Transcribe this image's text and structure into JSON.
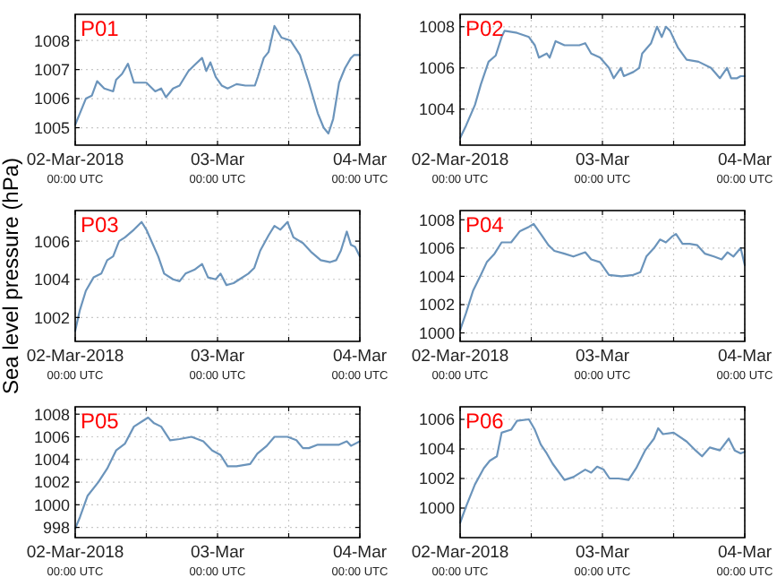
{
  "chart_data": [
    {
      "type": "line",
      "title": "P01",
      "x": [
        "2018-03-02T00:00",
        "2018-03-02T00:48",
        "2018-03-02T01:48",
        "2018-03-02T02:48",
        "2018-03-02T03:42",
        "2018-03-02T04:54",
        "2018-03-02T06:24",
        "2018-03-02T06:54",
        "2018-03-02T07:54",
        "2018-03-02T08:54",
        "2018-03-02T09:54",
        "2018-03-02T12:00",
        "2018-03-02T13:30",
        "2018-03-02T14:30",
        "2018-03-02T15:18",
        "2018-03-02T16:30",
        "2018-03-02T17:36",
        "2018-03-02T19:06",
        "2018-03-02T20:06",
        "2018-03-02T21:24",
        "2018-03-02T22:06",
        "2018-03-02T22:48",
        "2018-03-02T23:42",
        "2018-03-03T00:42",
        "2018-03-03T01:42",
        "2018-03-03T03:12",
        "2018-03-03T04:42",
        "2018-03-03T06:18",
        "2018-03-03T06:48",
        "2018-03-03T07:48",
        "2018-03-03T08:36",
        "2018-03-03T09:36",
        "2018-03-03T10:48",
        "2018-03-03T12:18",
        "2018-03-03T13:54",
        "2018-03-03T15:24",
        "2018-03-03T16:54",
        "2018-03-03T17:54",
        "2018-03-03T18:42",
        "2018-03-03T19:30",
        "2018-03-03T20:30",
        "2018-03-03T21:30",
        "2018-03-03T22:30",
        "2018-03-03T23:00",
        "2018-03-04T00:00"
      ],
      "series": [
        {
          "color": "#6b94bb",
          "values": [
            1005.1,
            1005.5,
            1006.0,
            1006.1,
            1006.6,
            1006.35,
            1006.25,
            1006.65,
            1006.85,
            1007.2,
            1006.55,
            1006.55,
            1006.25,
            1006.35,
            1006.05,
            1006.35,
            1006.45,
            1006.95,
            1007.15,
            1007.4,
            1006.95,
            1007.25,
            1006.75,
            1006.45,
            1006.35,
            1006.5,
            1006.45,
            1006.45,
            1006.75,
            1007.4,
            1007.6,
            1008.5,
            1008.1,
            1008.0,
            1007.5,
            1006.55,
            1005.5,
            1005.0,
            1004.8,
            1005.3,
            1006.55,
            1007.05,
            1007.4,
            1007.5,
            1007.5
          ]
        }
      ],
      "xlim": [
        "2018-03-02T00:00",
        "2018-03-04T00:00"
      ],
      "xticks": [
        {
          "value": "2018-03-02T00:00",
          "label": "02-Mar-2018\n00:00 UTC"
        },
        {
          "value": "2018-03-02T12:00",
          "label": null
        },
        {
          "value": "2018-03-03T00:00",
          "label": "03-Mar\n00:00 UTC"
        },
        {
          "value": "2018-03-03T12:00",
          "label": null
        },
        {
          "value": "2018-03-04T00:00",
          "label": "04-Mar\n00:00 UTC"
        }
      ],
      "ylim": [
        1004.4,
        1008.9
      ],
      "yticks": [
        1005,
        1006,
        1007,
        1008
      ],
      "grid": true,
      "line_style": "solid"
    },
    {
      "type": "line",
      "title": "P02",
      "x": [
        "2018-03-02T00:00",
        "2018-03-02T01:00",
        "2018-03-02T02:30",
        "2018-03-02T03:30",
        "2018-03-02T04:48",
        "2018-03-02T06:00",
        "2018-03-02T07:00",
        "2018-03-02T07:30",
        "2018-03-02T09:36",
        "2018-03-02T11:36",
        "2018-03-02T12:36",
        "2018-03-02T13:18",
        "2018-03-02T14:36",
        "2018-03-02T15:06",
        "2018-03-02T16:06",
        "2018-03-02T17:36",
        "2018-03-02T20:06",
        "2018-03-02T21:06",
        "2018-03-02T22:06",
        "2018-03-02T23:36",
        "2018-03-03T01:06",
        "2018-03-03T01:54",
        "2018-03-03T03:06",
        "2018-03-03T03:36",
        "2018-03-03T05:12",
        "2018-03-03T06:12",
        "2018-03-03T06:42",
        "2018-03-03T08:12",
        "2018-03-03T09:12",
        "2018-03-03T10:00",
        "2018-03-03T10:42",
        "2018-03-03T11:24",
        "2018-03-03T12:42",
        "2018-03-03T14:12",
        "2018-03-03T16:12",
        "2018-03-03T18:18",
        "2018-03-03T19:48",
        "2018-03-03T21:00",
        "2018-03-03T21:42",
        "2018-03-03T22:42",
        "2018-03-03T23:18",
        "2018-03-04T00:00"
      ],
      "series": [
        {
          "color": "#6b94bb",
          "values": [
            1002.6,
            1003.2,
            1004.2,
            1005.2,
            1006.3,
            1006.6,
            1007.5,
            1007.8,
            1007.7,
            1007.5,
            1007.1,
            1006.5,
            1006.7,
            1006.5,
            1007.3,
            1007.1,
            1007.1,
            1007.2,
            1006.7,
            1006.5,
            1006.0,
            1005.5,
            1006.0,
            1005.6,
            1005.8,
            1006.0,
            1006.7,
            1007.2,
            1008.0,
            1007.5,
            1008.0,
            1007.8,
            1007.0,
            1006.4,
            1006.3,
            1006.0,
            1005.5,
            1006.0,
            1005.5,
            1005.5,
            1005.6,
            1005.6
          ]
        }
      ],
      "xlim": [
        "2018-03-02T00:00",
        "2018-03-04T00:00"
      ],
      "xticks": [
        {
          "value": "2018-03-02T00:00",
          "label": "02-Mar-2018\n00:00 UTC"
        },
        {
          "value": "2018-03-02T12:00",
          "label": null
        },
        {
          "value": "2018-03-03T00:00",
          "label": "03-Mar\n00:00 UTC"
        },
        {
          "value": "2018-03-03T12:00",
          "label": null
        },
        {
          "value": "2018-03-04T00:00",
          "label": "04-Mar\n00:00 UTC"
        }
      ],
      "ylim": [
        1002.25,
        1008.6
      ],
      "yticks": [
        1004,
        1006,
        1008
      ],
      "grid": true,
      "line_style": "solid"
    },
    {
      "type": "line",
      "title": "P03",
      "ylabel": "Sea level pressure (hPa)",
      "x": [
        "2018-03-02T00:00",
        "2018-03-02T00:48",
        "2018-03-02T01:48",
        "2018-03-02T03:06",
        "2018-03-02T04:24",
        "2018-03-02T05:24",
        "2018-03-02T06:24",
        "2018-03-02T07:24",
        "2018-03-02T08:24",
        "2018-03-02T09:54",
        "2018-03-02T11:12",
        "2018-03-02T12:00",
        "2018-03-02T13:00",
        "2018-03-02T14:00",
        "2018-03-02T15:00",
        "2018-03-02T16:30",
        "2018-03-02T17:36",
        "2018-03-02T18:36",
        "2018-03-02T20:06",
        "2018-03-02T21:24",
        "2018-03-02T22:24",
        "2018-03-02T23:42",
        "2018-03-03T00:30",
        "2018-03-03T01:30",
        "2018-03-03T02:42",
        "2018-03-03T03:42",
        "2018-03-03T05:12",
        "2018-03-03T06:12",
        "2018-03-03T07:12",
        "2018-03-03T08:36",
        "2018-03-03T09:36",
        "2018-03-03T10:36",
        "2018-03-03T11:48",
        "2018-03-03T12:48",
        "2018-03-03T14:24",
        "2018-03-03T15:54",
        "2018-03-03T17:24",
        "2018-03-03T19:00",
        "2018-03-03T20:00",
        "2018-03-03T20:48",
        "2018-03-03T21:48",
        "2018-03-03T22:30",
        "2018-03-03T23:12",
        "2018-03-04T00:00"
      ],
      "series": [
        {
          "color": "#6b94bb",
          "values": [
            1001.3,
            1002.4,
            1003.4,
            1004.1,
            1004.3,
            1005.0,
            1005.2,
            1006.0,
            1006.2,
            1006.6,
            1007.0,
            1006.6,
            1005.9,
            1005.2,
            1004.3,
            1004.0,
            1003.9,
            1004.3,
            1004.5,
            1004.8,
            1004.1,
            1004.0,
            1004.3,
            1003.7,
            1003.8,
            1004.0,
            1004.3,
            1004.6,
            1005.5,
            1006.3,
            1006.8,
            1006.6,
            1007.0,
            1006.2,
            1005.9,
            1005.4,
            1005.0,
            1004.9,
            1005.0,
            1005.5,
            1006.5,
            1005.8,
            1005.7,
            1005.2
          ]
        }
      ],
      "xlim": [
        "2018-03-02T00:00",
        "2018-03-04T00:00"
      ],
      "xticks": [
        {
          "value": "2018-03-02T00:00",
          "label": "02-Mar-2018\n00:00 UTC"
        },
        {
          "value": "2018-03-02T12:00",
          "label": null
        },
        {
          "value": "2018-03-03T00:00",
          "label": "03-Mar\n00:00 UTC"
        },
        {
          "value": "2018-03-03T12:00",
          "label": null
        },
        {
          "value": "2018-03-04T00:00",
          "label": "04-Mar\n00:00 UTC"
        }
      ],
      "ylim": [
        1000.75,
        1007.6
      ],
      "yticks": [
        1002,
        1004,
        1006
      ],
      "grid": true,
      "line_style": "solid"
    },
    {
      "type": "line",
      "title": "P04",
      "x": [
        "2018-03-02T00:00",
        "2018-03-02T01:00",
        "2018-03-02T02:12",
        "2018-03-02T03:30",
        "2018-03-02T04:30",
        "2018-03-02T05:48",
        "2018-03-02T07:00",
        "2018-03-02T08:36",
        "2018-03-02T10:06",
        "2018-03-02T11:36",
        "2018-03-02T12:24",
        "2018-03-02T13:36",
        "2018-03-02T14:54",
        "2018-03-02T15:54",
        "2018-03-02T17:36",
        "2018-03-02T19:06",
        "2018-03-02T21:06",
        "2018-03-02T22:06",
        "2018-03-02T23:36",
        "2018-03-03T01:06",
        "2018-03-03T03:12",
        "2018-03-03T05:12",
        "2018-03-03T06:24",
        "2018-03-03T07:24",
        "2018-03-03T08:42",
        "2018-03-03T09:42",
        "2018-03-03T10:42",
        "2018-03-03T11:42",
        "2018-03-03T12:24",
        "2018-03-03T13:30",
        "2018-03-03T14:42",
        "2018-03-03T16:00",
        "2018-03-03T17:18",
        "2018-03-03T18:48",
        "2018-03-03T20:06",
        "2018-03-03T21:06",
        "2018-03-03T22:06",
        "2018-03-03T23:18",
        "2018-03-04T00:00"
      ],
      "series": [
        {
          "color": "#6b94bb",
          "values": [
            1000.2,
            1001.4,
            1003.0,
            1004.1,
            1005.0,
            1005.6,
            1006.4,
            1006.4,
            1007.2,
            1007.5,
            1007.7,
            1007.0,
            1006.2,
            1005.8,
            1005.6,
            1005.4,
            1005.7,
            1005.2,
            1005.0,
            1004.1,
            1004.0,
            1004.1,
            1004.3,
            1005.4,
            1006.0,
            1006.6,
            1006.4,
            1006.8,
            1007.0,
            1006.3,
            1006.3,
            1006.2,
            1005.6,
            1005.4,
            1005.2,
            1005.7,
            1005.4,
            1006.0,
            1004.8
          ]
        }
      ],
      "xlim": [
        "2018-03-02T00:00",
        "2018-03-04T00:00"
      ],
      "xticks": [
        {
          "value": "2018-03-02T00:00",
          "label": "02-Mar-2018\n00:00 UTC"
        },
        {
          "value": "2018-03-02T12:00",
          "label": null
        },
        {
          "value": "2018-03-03T00:00",
          "label": "03-Mar\n00:00 UTC"
        },
        {
          "value": "2018-03-03T12:00",
          "label": null
        },
        {
          "value": "2018-03-04T00:00",
          "label": "04-Mar\n00:00 UTC"
        }
      ],
      "ylim": [
        999.4,
        1008.65
      ],
      "yticks": [
        1000,
        1002,
        1004,
        1006,
        1008
      ],
      "grid": true,
      "line_style": "solid"
    },
    {
      "type": "line",
      "title": "P05",
      "x": [
        "2018-03-02T00:00",
        "2018-03-02T00:48",
        "2018-03-02T02:06",
        "2018-03-02T03:54",
        "2018-03-02T05:24",
        "2018-03-02T06:54",
        "2018-03-02T08:24",
        "2018-03-02T09:54",
        "2018-03-02T11:24",
        "2018-03-02T12:18",
        "2018-03-02T13:18",
        "2018-03-02T14:30",
        "2018-03-02T16:00",
        "2018-03-02T17:36",
        "2018-03-02T19:36",
        "2018-03-02T21:36",
        "2018-03-02T23:06",
        "2018-03-03T00:30",
        "2018-03-03T01:42",
        "2018-03-03T03:12",
        "2018-03-03T05:30",
        "2018-03-03T06:42",
        "2018-03-03T08:18",
        "2018-03-03T09:36",
        "2018-03-03T11:48",
        "2018-03-03T13:18",
        "2018-03-03T14:24",
        "2018-03-03T15:24",
        "2018-03-03T16:54",
        "2018-03-03T18:54",
        "2018-03-03T20:30",
        "2018-03-03T21:48",
        "2018-03-03T22:30",
        "2018-03-04T00:00"
      ],
      "series": [
        {
          "color": "#6b94bb",
          "values": [
            997.9,
            998.9,
            1000.8,
            1002.0,
            1003.2,
            1004.8,
            1005.4,
            1006.9,
            1007.4,
            1007.7,
            1007.2,
            1006.9,
            1005.7,
            1005.8,
            1006.0,
            1005.6,
            1004.8,
            1004.4,
            1003.4,
            1003.4,
            1003.6,
            1004.5,
            1005.2,
            1006.0,
            1006.0,
            1005.7,
            1005.0,
            1005.0,
            1005.3,
            1005.3,
            1005.3,
            1005.6,
            1005.2,
            1005.6
          ]
        }
      ],
      "xlim": [
        "2018-03-02T00:00",
        "2018-03-04T00:00"
      ],
      "xticks": [
        {
          "value": "2018-03-02T00:00",
          "label": "02-Mar-2018\n00:00 UTC"
        },
        {
          "value": "2018-03-02T12:00",
          "label": null
        },
        {
          "value": "2018-03-03T00:00",
          "label": "03-Mar\n00:00 UTC"
        },
        {
          "value": "2018-03-03T12:00",
          "label": null
        },
        {
          "value": "2018-03-04T00:00",
          "label": "04-Mar\n00:00 UTC"
        }
      ],
      "ylim": [
        997.1,
        1008.65
      ],
      "yticks": [
        998,
        1000,
        1002,
        1004,
        1006,
        1008
      ],
      "grid": true,
      "line_style": "solid"
    },
    {
      "type": "line",
      "title": "P06",
      "x": [
        "2018-03-02T00:00",
        "2018-03-02T01:00",
        "2018-03-02T02:30",
        "2018-03-02T04:00",
        "2018-03-02T05:00",
        "2018-03-02T06:12",
        "2018-03-02T07:00",
        "2018-03-02T08:36",
        "2018-03-02T09:36",
        "2018-03-02T11:36",
        "2018-03-02T12:36",
        "2018-03-02T13:36",
        "2018-03-02T14:36",
        "2018-03-02T15:36",
        "2018-03-02T17:36",
        "2018-03-02T19:06",
        "2018-03-02T21:06",
        "2018-03-02T22:06",
        "2018-03-02T23:06",
        "2018-03-03T00:12",
        "2018-03-03T01:12",
        "2018-03-03T02:42",
        "2018-03-03T04:24",
        "2018-03-03T05:42",
        "2018-03-03T07:12",
        "2018-03-03T08:42",
        "2018-03-03T09:24",
        "2018-03-03T10:12",
        "2018-03-03T12:00",
        "2018-03-03T14:12",
        "2018-03-03T15:42",
        "2018-03-03T16:48",
        "2018-03-03T18:06",
        "2018-03-03T19:48",
        "2018-03-03T21:18",
        "2018-03-03T22:18",
        "2018-03-03T23:18",
        "2018-03-04T00:00"
      ],
      "series": [
        {
          "color": "#6b94bb",
          "values": [
            999.0,
            1000.1,
            1001.6,
            1002.7,
            1003.2,
            1003.5,
            1005.1,
            1005.3,
            1005.9,
            1006.0,
            1005.3,
            1004.3,
            1003.7,
            1003.0,
            1001.9,
            1002.1,
            1002.6,
            1002.4,
            1002.8,
            1002.6,
            1002.0,
            1002.0,
            1001.9,
            1002.7,
            1003.9,
            1004.7,
            1005.4,
            1005.0,
            1005.1,
            1004.5,
            1003.9,
            1003.5,
            1004.1,
            1003.9,
            1004.7,
            1003.9,
            1003.7,
            1003.8
          ]
        }
      ],
      "xlim": [
        "2018-03-02T00:00",
        "2018-03-04T00:00"
      ],
      "xticks": [
        {
          "value": "2018-03-02T00:00",
          "label": "02-Mar-2018\n00:00 UTC"
        },
        {
          "value": "2018-03-02T12:00",
          "label": null
        },
        {
          "value": "2018-03-03T00:00",
          "label": "03-Mar\n00:00 UTC"
        },
        {
          "value": "2018-03-03T12:00",
          "label": null
        },
        {
          "value": "2018-03-04T00:00",
          "label": "04-Mar\n00:00 UTC"
        }
      ],
      "ylim": [
        998.0,
        1006.85
      ],
      "yticks": [
        1000,
        1002,
        1004,
        1006
      ],
      "grid": true,
      "line_style": "solid"
    }
  ]
}
